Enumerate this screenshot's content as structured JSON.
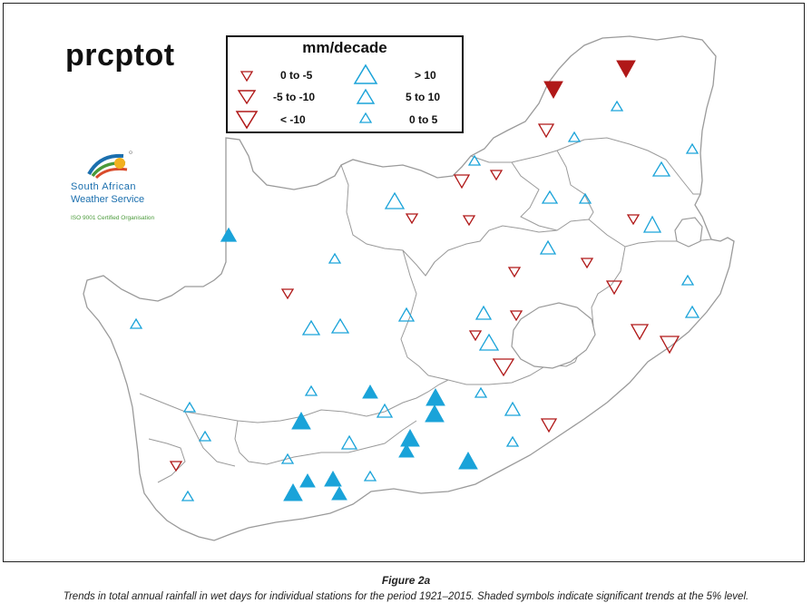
{
  "map": {
    "title": "prcptot",
    "legend": {
      "title": "mm/decade",
      "items": [
        {
          "label": "0 to -5",
          "symbol": "down-small"
        },
        {
          "label": "-5 to -10",
          "symbol": "down-medium"
        },
        {
          "label": "< -10",
          "symbol": "down-large"
        },
        {
          "label": "> 10",
          "symbol": "up-large"
        },
        {
          "label": "5 to 10",
          "symbol": "up-medium"
        },
        {
          "label": "0 to 5",
          "symbol": "up-small"
        }
      ]
    },
    "colors": {
      "decrease": "#b01818",
      "increase": "#1aa3d9"
    }
  },
  "logo": {
    "line1": "South  African",
    "line2": "Weather Service",
    "line3": "ISO 9001 Certified Organisation"
  },
  "caption": {
    "title": "Figure 2a",
    "text": "Trends in total annual rainfall in wet days for individual stations for the period 1921–2015. Shaded symbols indicate significant trends at the 5% level."
  }
}
